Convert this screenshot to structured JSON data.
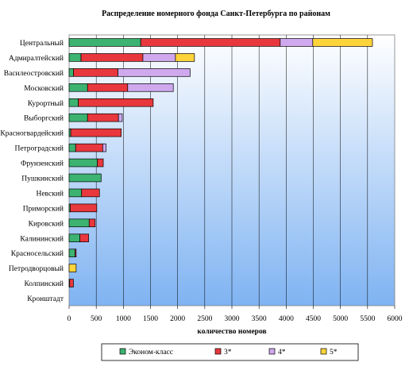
{
  "chart_data": {
    "type": "bar",
    "orientation": "horizontal",
    "stacked": true,
    "title": "Распределение номерного фонда Санкт-Петербурга по районам",
    "xlabel": "количество номеров",
    "ylabel": "",
    "xlim": [
      0,
      6000
    ],
    "xticks": [
      0,
      500,
      1000,
      1500,
      2000,
      2500,
      3000,
      3500,
      4000,
      4500,
      5000,
      5500,
      6000
    ],
    "grid": true,
    "legend_position": "bottom",
    "categories": [
      "Центральный",
      "Адмиралтейский",
      "Василеостровский",
      "Московский",
      "Курортный",
      "Выборгский",
      "Красногвардейский",
      "Петроградский",
      "Фрунзенский",
      "Пушкинский",
      "Невский",
      "Приморский",
      "Кировский",
      "Калининский",
      "Красносельский",
      "Петродворцовый",
      "Колпинский",
      "Кронштадт"
    ],
    "series": [
      {
        "name": "Эконом-класс",
        "color": "#3cb371",
        "values": [
          1320,
          220,
          80,
          340,
          170,
          340,
          30,
          120,
          520,
          590,
          230,
          20,
          370,
          200,
          110,
          0,
          10,
          0
        ]
      },
      {
        "name": "3*",
        "color": "#e8383d",
        "values": [
          2570,
          1140,
          820,
          740,
          1380,
          570,
          930,
          500,
          110,
          0,
          330,
          490,
          110,
          160,
          20,
          0,
          70,
          0
        ]
      },
      {
        "name": "4*",
        "color": "#cfa8ee",
        "values": [
          600,
          600,
          1330,
          840,
          0,
          70,
          0,
          60,
          0,
          0,
          0,
          0,
          0,
          0,
          0,
          0,
          0,
          0
        ]
      },
      {
        "name": "5*",
        "color": "#ffd43b",
        "values": [
          1100,
          350,
          0,
          0,
          0,
          0,
          0,
          0,
          0,
          0,
          0,
          0,
          0,
          0,
          0,
          130,
          0,
          0
        ]
      }
    ]
  }
}
